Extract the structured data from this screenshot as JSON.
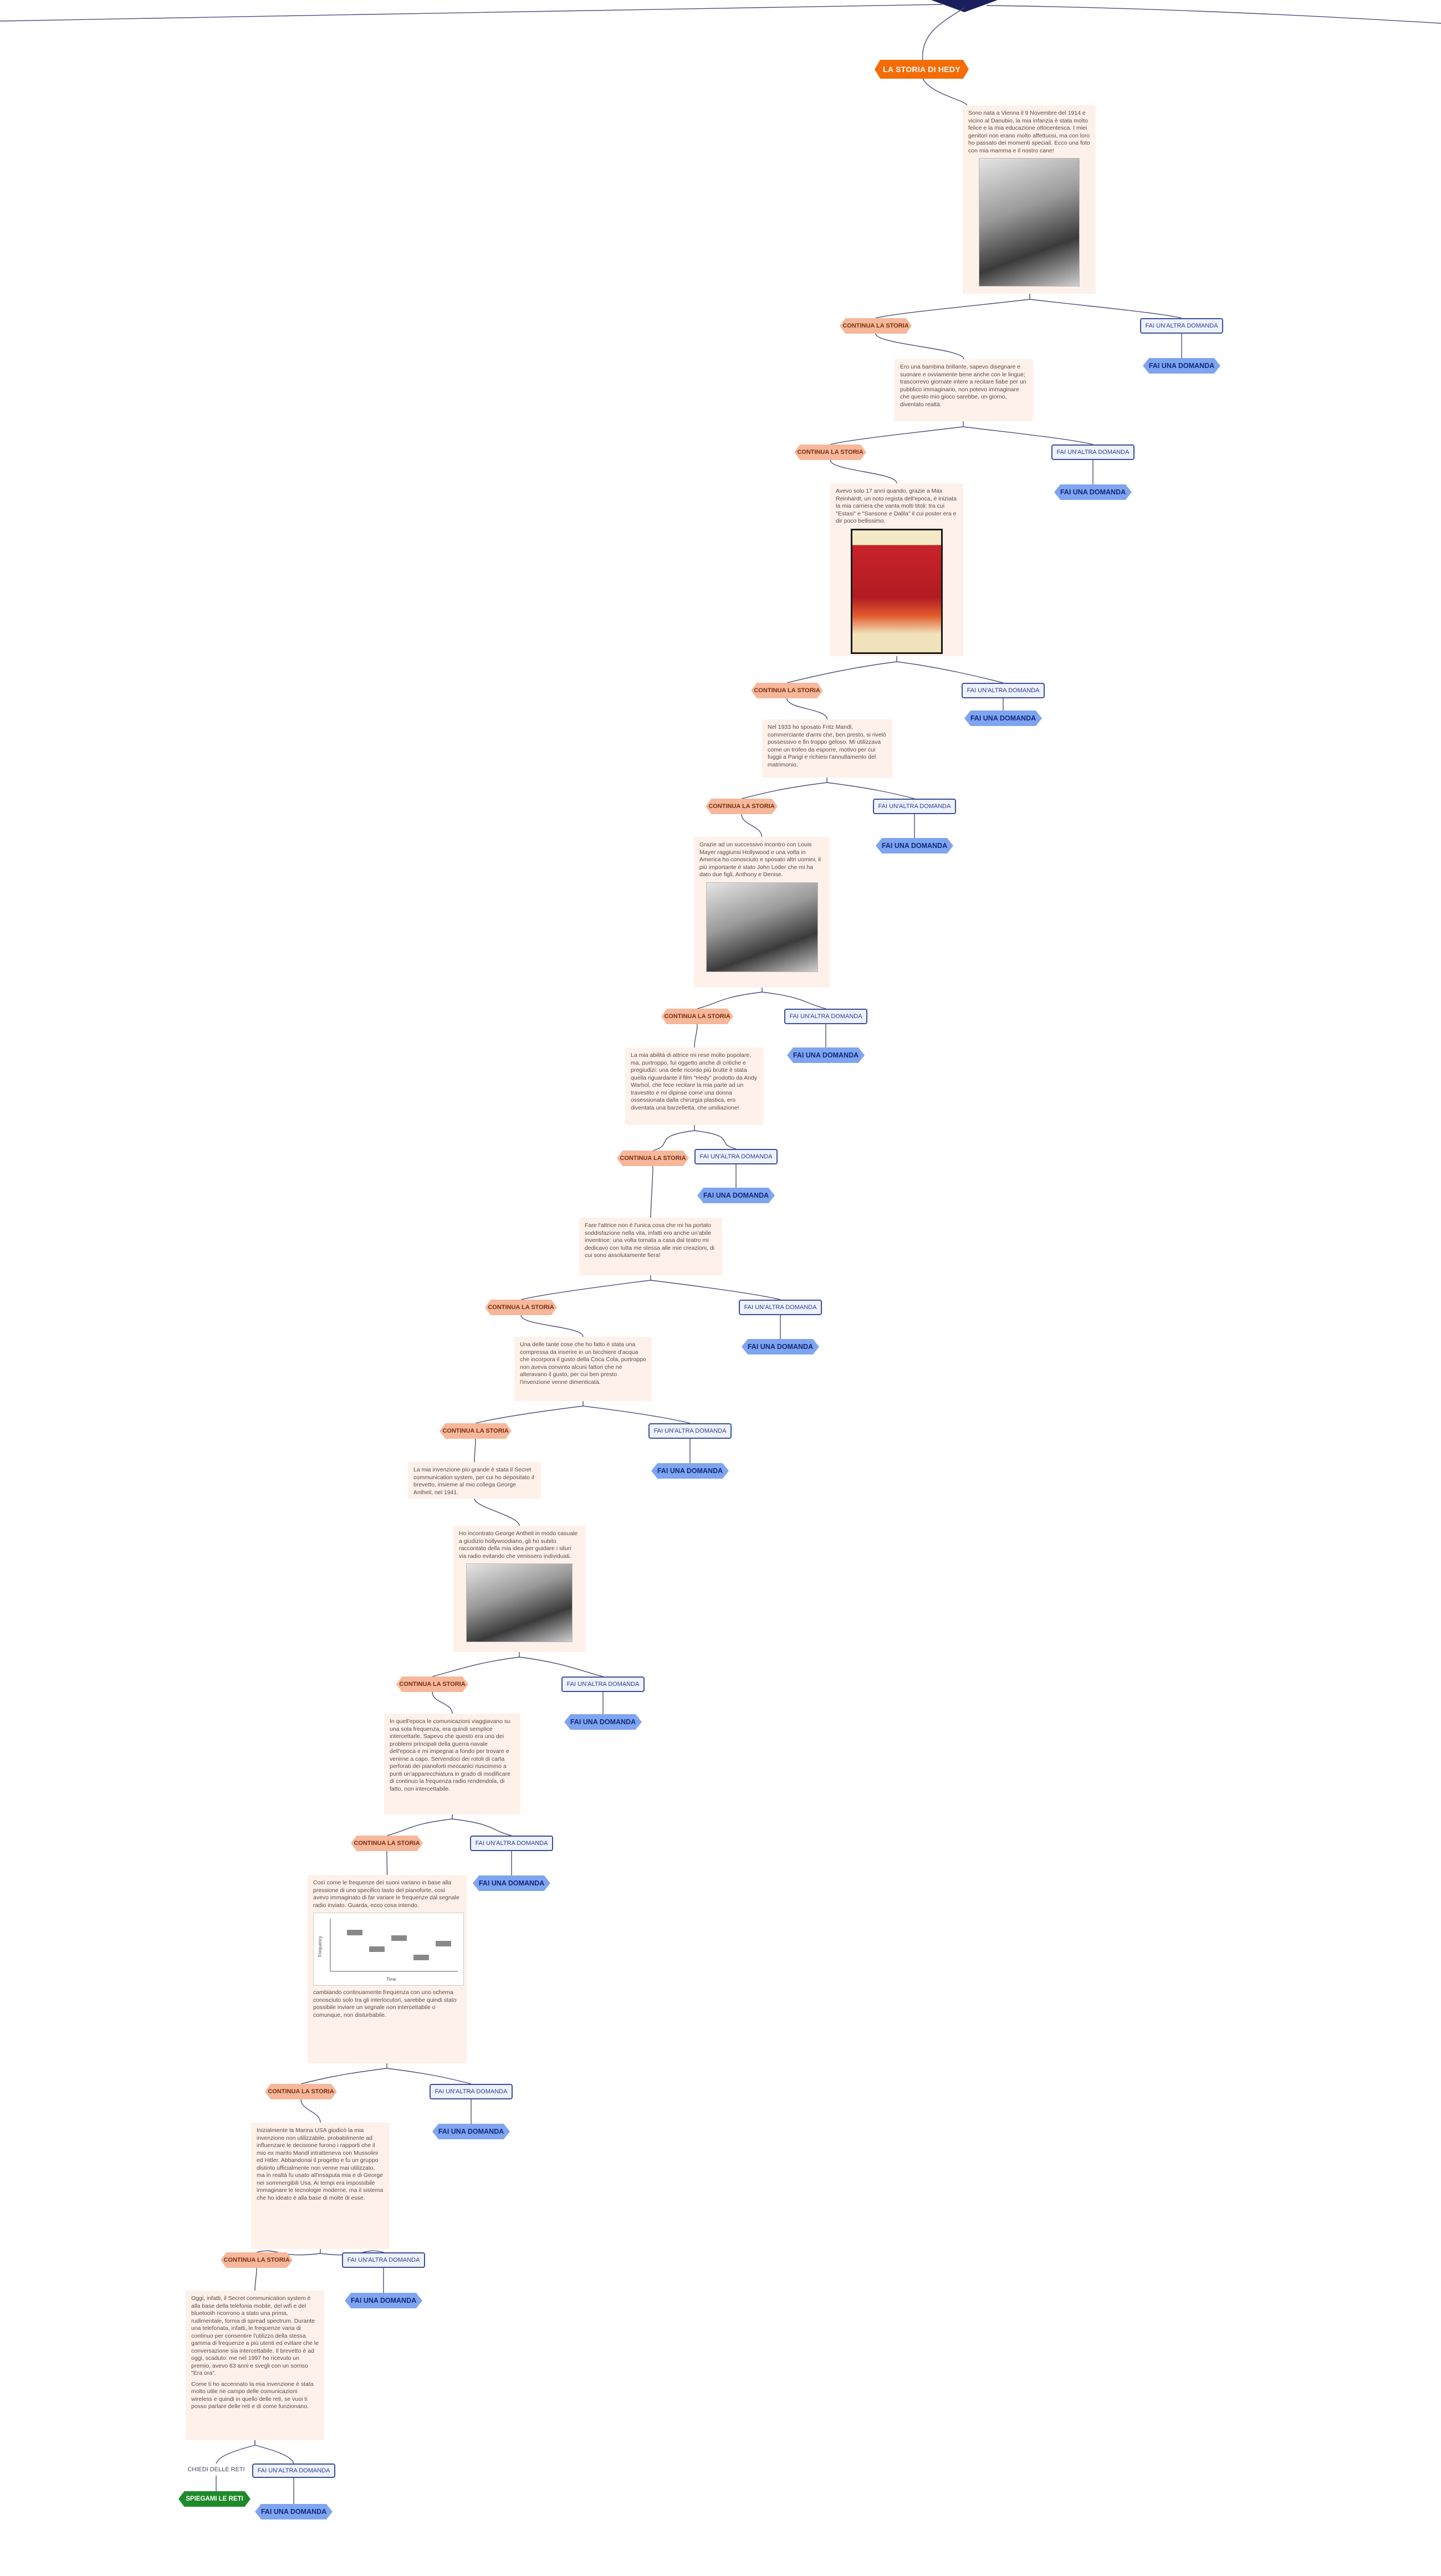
{
  "title": "LA STORIA DI HEDY",
  "labels": {
    "continue": "CONTINUA LA STORIA",
    "other_question": "FAI UN'ALTRA DOMANDA",
    "ask": "FAI UNA DOMANDA",
    "ask_networks": "CHIEDI DELLE RETI",
    "explain_networks": "SPIEGAMI LE RETI"
  },
  "cards": [
    {
      "text": "Sono nata a Vienna il 9 Novembre del 1914 e vicino al Danubio, la mia infanzia è stata molto felice e la mia educazione ottocentesca. I miei genitori non erano molto affettuosi, ma con loro ho passato dei momenti speciali. Ecco una foto con mia mamma e il nostro cane!"
    },
    {
      "text": "Ero una bambina brillante, sapevo disegnare e suonare e ovviamente bene anche con le lingue; trascorrevo giornate intere a recitare fiabe per un pubblico immaginario, non potevo immaginare che questo mio gioco sarebbe, un giorno, diventato realtà."
    },
    {
      "text": "Avevo solo 17 anni quando, grazie a Max Reinhardt, un noto regista dell'epoca, è iniziata la mia carriera che vanta molti titoli: tra cui \"Estasi\" e \"Sansone e Dalila\" il cui poster era e dir poco bellissimo."
    },
    {
      "text": "Nel 1933 ho sposato Fritz Mandl, commerciante d'armi che, ben presto, si rivelò possessivo e fin troppo geloso. Mi utilizzava come un trofeo da esporre, motivo per cui fuggii a Parigi e richiesi l'annullamento del matrimonio."
    },
    {
      "text": "Grazie ad un successivo incontro con Louis Mayer raggiunsi Hollywood e una volta in America ho conosciuto e sposato altri uomini, il più importante è stato John Loder che mi ha dato due figli, Anthony e Denise."
    },
    {
      "text": "La mia abilità di attrice mi rese molto popolare, ma, purtroppo, fui oggetto anche di critiche e pregiudizi: una delle ricordo più brutte è stata quella riguardante il film \"Hedy\" prodotto da Andy Warhol, che fece recitare la mia parte ad un travestito e mi dipinse come una donna ossessionata dalla chirurgia plastica, ero diventata una barzelletta, che umiliazione!"
    },
    {
      "text": "Fare l'attrice non è l'unica cosa che mi ha portato soddisfazione nella vita, infatti ero anche un'abile inventrice: una volta tornata a casa dal teatro mi dedicavo con tutta me stessa alle mie creazioni, di cui sono assolutamente fiera!"
    },
    {
      "text": "Una delle tante cose che ho fatto è stata una compressa da inserire in un bicchiere d'acqua che incorpora il gusto della Coca Cola, purtroppo non aveva convinto alcuni fattori che ne alteravano il gusto, per cui ben presto l'invenzione venne dimenticata."
    },
    {
      "text": "La mia invenzione più grande è stata il Secret communication system, per cui ho depositato il brevetto, insieme al mio collega George Antheil, nel 1941."
    },
    {
      "text": "Ho incontrato George Antheil in modo casuale a giudizio hollywoodiano, gli ho subito raccontato della mia idea per guidare i siluri via radio evitando che venissero individuati."
    },
    {
      "text": "In quell'epoca le comunicazioni viaggiavano su una sola frequenza, era quindi semplice intercettarle. Sapevo che questo era uno dei problemi principali della guerra navale dell'epoca e mi impegnai a fondo per trovare e venirne a capo. Servendoci dei rotoli di carta perforati dei pianoforti meccanici riuscimmo a punti un'apparecchiatura in grado di modificare di continuo la frequenza radio rendendola, di fatto, non intercettabile."
    },
    {
      "text": "Così come le frequenze dei suoni variano in base alla pressione di uno specifico tasto del pianoforte, così avevo immaginato di far variare le frequenze dal segnale radio inviato. Guarda, ecco cosa intendo.",
      "text2": "cambiando continuamente frequenza con uno schema conosciuto solo tra gli interlocutori, sarebbe quindi stato possibile inviare un segnale non intercettabile o comunque, non disturbabile."
    },
    {
      "text": "Inizialmente la Marina USA giudicò la mia invenzione non utilizzabile, probabilmente ad influenzare le decisione furono i rapporti che il mio ex marito Mandl intratteneva con Mussolini ed Hitler. Abbandonai il progetto e fu un gruppo distinto ufficialmente non venne mai utilizzato, ma in realtà fu usato all'insaputa mia e di George nei sommergibili Usa. Ai tempi era impossibile immaginare le tecnologie moderne, ma il sistema che ho ideato è alla base di molte di esse."
    },
    {
      "text": "Oggi, infatti, il Secret communication system è alla base della telefonia mobile, del wifi e del bluetooth ricorrono a stato una prima, rudimentale, forma di spread spectrum. Durante una telefonata, infatti, le frequenze varia di continuo per consentire l'utilizzo della stessa gamma di frequenze a più utenti ed evitare che le conversazione sia intercettabile. Il brevetto è ad oggi, scaduto: me nel 1997 ho ricevuto un premio, avevo 83 anni e svegli con un sorriso \"Era ora\".",
      "text2": "Come ti ho accennato la mia invenzione è stata molto utile ne campo delle comunicazioni wireless e quindi in quello delle reti, se vuoi ti posso parlare delle reti e di come funzionano."
    }
  ],
  "chart_labels": {
    "xlabel": "Time",
    "ylabel": "Frequency"
  }
}
